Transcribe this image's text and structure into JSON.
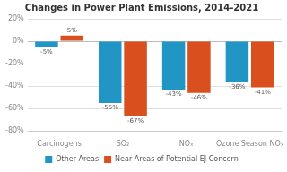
{
  "chart_data": {
    "type": "bar",
    "title": "Changes in Power Plant Emissions, 2014-2021",
    "categories": [
      "Carcinogens",
      "SO₂",
      "NOₓ",
      "Ozone Season NOₓ"
    ],
    "series": [
      {
        "name": "Other Areas",
        "color": "#2196c4",
        "values": [
          -5,
          -55,
          -43,
          -36
        ],
        "value_labels": [
          "-5%",
          "-55%",
          "-43%",
          "-36%"
        ]
      },
      {
        "name": "Near Areas of Potential EJ Concern",
        "color": "#d94f1e",
        "values": [
          5,
          -67,
          -46,
          -41
        ],
        "value_labels": [
          "5%",
          "-67%",
          "-46%",
          "-41%"
        ]
      }
    ],
    "ylim": [
      -80,
      20
    ],
    "yticks": [
      {
        "value": 20,
        "label": "20%"
      },
      {
        "value": 0,
        "label": "0%"
      },
      {
        "value": -20,
        "label": "-20%"
      },
      {
        "value": -40,
        "label": "-40%"
      },
      {
        "value": -60,
        "label": "-60%"
      },
      {
        "value": -80,
        "label": "-80%"
      }
    ],
    "grid": true,
    "legend": "bottom",
    "data_labels": true
  }
}
